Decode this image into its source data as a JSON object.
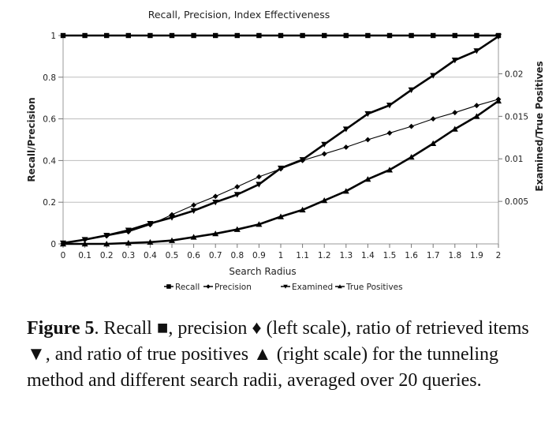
{
  "chart_data": {
    "type": "line",
    "title": "Recall, Precision, Index Effectiveness",
    "xlabel": "Search Radius",
    "ylabel": "Recall/Precision",
    "y2label": "Examined/True Positives",
    "x": [
      0,
      0.1,
      0.2,
      0.3,
      0.4,
      0.5,
      0.6,
      0.7,
      0.8,
      0.9,
      1,
      1.1,
      1.2,
      1.3,
      1.4,
      1.5,
      1.6,
      1.7,
      1.8,
      1.9,
      2
    ],
    "x_tick_labels": [
      "0",
      "0.1",
      "0.2",
      "0.3",
      "0.4",
      "0.5",
      "0.6",
      "0.7",
      "0.8",
      "0.9",
      "1",
      "1.1",
      "1.2",
      "1.3",
      "1.4",
      "1.5",
      "1.6",
      "1.7",
      "1.8",
      "1.9",
      "2"
    ],
    "xlim": [
      0,
      2
    ],
    "ylim": [
      0,
      1
    ],
    "y_ticks": [
      0,
      0.2,
      0.4,
      0.6,
      0.8,
      1
    ],
    "y_tick_labels": [
      "0",
      "0.2",
      "0.4",
      "0.6",
      "0.8",
      "1"
    ],
    "y2lim": [
      0,
      0.0245
    ],
    "y2_ticks": [
      0.005,
      0.01,
      0.015,
      0.02
    ],
    "y2_tick_labels": [
      "0.005",
      "0.01",
      "0.015",
      "0.02"
    ],
    "grid": true,
    "legend_position": "bottom",
    "series": [
      {
        "name": "Recall",
        "axis": "left",
        "marker": "square",
        "color": "#000000",
        "values": [
          1,
          1,
          1,
          1,
          1,
          1,
          1,
          1,
          1,
          1,
          1,
          1,
          1,
          1,
          1,
          1,
          1,
          1,
          1,
          1,
          1
        ]
      },
      {
        "name": "Precision",
        "axis": "left",
        "marker": "diamond",
        "color": "#000000",
        "values": [
          0.002,
          0.02,
          0.038,
          0.058,
          0.092,
          0.14,
          0.186,
          0.228,
          0.274,
          0.322,
          0.36,
          0.4,
          0.432,
          0.464,
          0.5,
          0.532,
          0.564,
          0.6,
          0.63,
          0.664,
          0.694
        ]
      },
      {
        "name": "Examined",
        "axis": "right",
        "marker": "triangle-down",
        "color": "#000000",
        "values": [
          0.0001,
          0.0005,
          0.001,
          0.0016,
          0.0024,
          0.0031,
          0.0039,
          0.0049,
          0.0058,
          0.007,
          0.0089,
          0.0099,
          0.0117,
          0.0135,
          0.0153,
          0.0163,
          0.0181,
          0.0198,
          0.0216,
          0.0227,
          0.0244
        ]
      },
      {
        "name": "True Positives",
        "axis": "right",
        "marker": "triangle-up",
        "color": "#000000",
        "values": [
          0,
          0,
          0,
          0.0001,
          0.0002,
          0.0004,
          0.0008,
          0.0012,
          0.0017,
          0.0023,
          0.0032,
          0.004,
          0.0051,
          0.0062,
          0.0076,
          0.0087,
          0.0102,
          0.0118,
          0.0135,
          0.015,
          0.0168
        ]
      }
    ]
  },
  "caption": {
    "label": "Figure 5",
    "text": ".  Recall ■, precision ♦ (left scale), ratio of retrieved items ▼, and ratio of true positives ▲ (right scale) for the tunneling method and different search radii, averaged over 20 queries."
  }
}
